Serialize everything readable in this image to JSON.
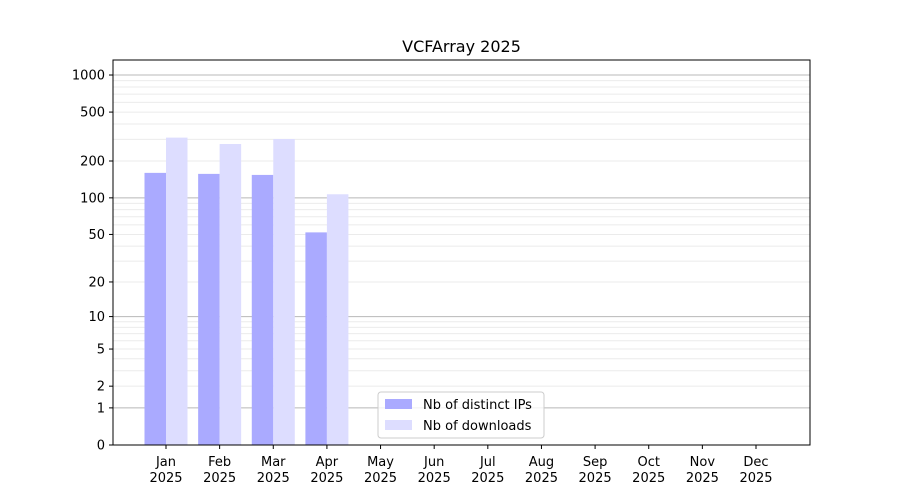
{
  "chart_data": {
    "type": "bar",
    "title": "VCFArray 2025",
    "xlabel": "",
    "ylabel": "",
    "yscale": "log10(y+1)",
    "ylim": [
      0,
      1324
    ],
    "grid": true,
    "legend_position": "bottom-center",
    "categories": [
      "Jan\n2025",
      "Feb\n2025",
      "Mar\n2025",
      "Apr\n2025",
      "May\n2025",
      "Jun\n2025",
      "Jul\n2025",
      "Aug\n2025",
      "Sep\n2025",
      "Oct\n2025",
      "Nov\n2025",
      "Dec\n2025"
    ],
    "yticks": [
      0,
      1,
      2,
      5,
      10,
      20,
      50,
      100,
      200,
      500,
      1000
    ],
    "series": [
      {
        "name": "Nb of distinct IPs",
        "color": "#aaaaff",
        "values": [
          160,
          157,
          154,
          52,
          0,
          0,
          0,
          0,
          0,
          0,
          0,
          0
        ]
      },
      {
        "name": "Nb of downloads",
        "color": "#ddddff",
        "values": [
          310,
          275,
          302,
          107,
          0,
          0,
          0,
          0,
          0,
          0,
          0,
          0
        ]
      }
    ]
  }
}
